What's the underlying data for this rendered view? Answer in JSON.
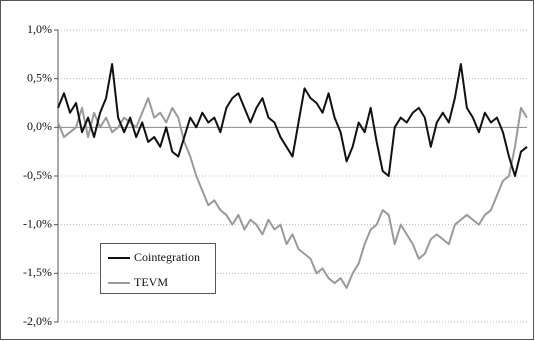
{
  "chart_data": {
    "type": "line",
    "yticks": [
      {
        "value": 1.0,
        "label": "1,0%"
      },
      {
        "value": 0.5,
        "label": "0,5%"
      },
      {
        "value": 0.0,
        "label": "0,0%"
      },
      {
        "value": -0.5,
        "label": "-0,5%"
      },
      {
        "value": -1.0,
        "label": "-1,0%"
      },
      {
        "value": -1.5,
        "label": "-1,5%"
      },
      {
        "value": -2.0,
        "label": "-2,0%"
      }
    ],
    "ylim": [
      -2.0,
      1.0
    ],
    "grid": true,
    "legend": "lower-left",
    "series": [
      {
        "name": "Cointegration",
        "color": "#111111",
        "values": [
          0.2,
          0.35,
          0.15,
          0.25,
          -0.05,
          0.1,
          -0.1,
          0.15,
          0.3,
          0.65,
          0.1,
          -0.05,
          0.1,
          -0.1,
          0.05,
          -0.15,
          -0.1,
          -0.2,
          0.0,
          -0.25,
          -0.3,
          -0.1,
          0.1,
          0.0,
          0.15,
          0.05,
          0.1,
          -0.05,
          0.2,
          0.3,
          0.35,
          0.2,
          0.05,
          0.2,
          0.3,
          0.1,
          0.05,
          -0.1,
          -0.2,
          -0.3,
          0.05,
          0.4,
          0.3,
          0.25,
          0.15,
          0.35,
          0.1,
          -0.05,
          -0.35,
          -0.2,
          0.05,
          -0.05,
          0.2,
          -0.15,
          -0.45,
          -0.5,
          0.0,
          0.1,
          0.05,
          0.15,
          0.2,
          0.1,
          -0.2,
          0.05,
          0.15,
          0.05,
          0.3,
          0.65,
          0.2,
          0.1,
          -0.05,
          0.15,
          0.05,
          0.1,
          -0.05,
          -0.3,
          -0.5,
          -0.25,
          -0.2
        ]
      },
      {
        "name": "TEVM",
        "color": "#9a9a9a",
        "values": [
          0.05,
          -0.1,
          -0.05,
          0.0,
          0.2,
          -0.1,
          0.15,
          0.0,
          0.1,
          -0.05,
          0.0,
          0.1,
          0.05,
          0.0,
          0.15,
          0.3,
          0.1,
          0.15,
          0.05,
          0.2,
          0.1,
          -0.15,
          -0.3,
          -0.5,
          -0.65,
          -0.8,
          -0.75,
          -0.85,
          -0.9,
          -1.0,
          -0.9,
          -1.05,
          -0.95,
          -1.0,
          -1.1,
          -0.95,
          -1.05,
          -1.0,
          -1.2,
          -1.1,
          -1.25,
          -1.3,
          -1.35,
          -1.5,
          -1.45,
          -1.55,
          -1.6,
          -1.55,
          -1.65,
          -1.5,
          -1.4,
          -1.2,
          -1.05,
          -1.0,
          -0.85,
          -0.9,
          -1.2,
          -1.0,
          -1.1,
          -1.2,
          -1.35,
          -1.3,
          -1.15,
          -1.1,
          -1.15,
          -1.2,
          -1.0,
          -0.95,
          -0.9,
          -0.95,
          -1.0,
          -0.9,
          -0.85,
          -0.7,
          -0.55,
          -0.5,
          -0.2,
          0.2,
          0.1
        ]
      }
    ]
  }
}
